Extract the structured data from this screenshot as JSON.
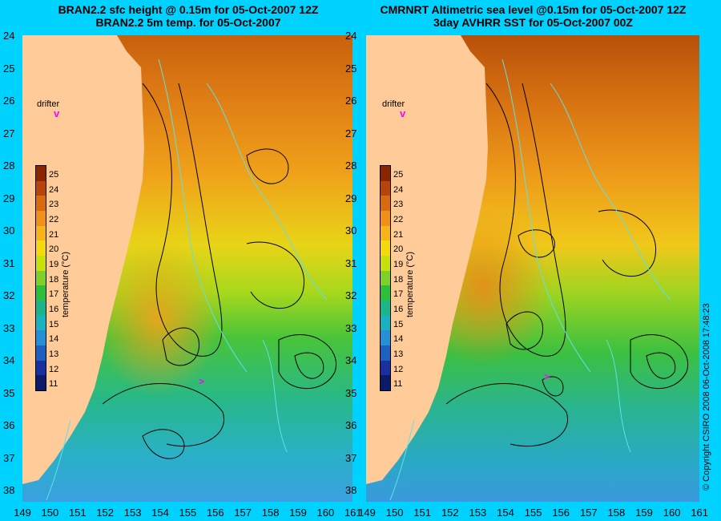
{
  "left_panel": {
    "title_line1": "BRAN2.2 sfc height @ 0.15m for 05-Oct-2007 12Z",
    "title_line2": "BRAN2.2 5m temp. for 05-Oct-2007",
    "drifter_label": "drifter"
  },
  "right_panel": {
    "title_line1": "CMRNRT Altimetric sea level  @0.15m  for 05-Oct-2007 12Z",
    "title_line2": "3day AVHRR SST for 05-Oct-2007 00Z",
    "drifter_label": "drifter"
  },
  "axes": {
    "y_ticks": [
      "24",
      "25",
      "26",
      "27",
      "28",
      "29",
      "30",
      "31",
      "32",
      "33",
      "34",
      "35",
      "36",
      "37",
      "38"
    ],
    "x_ticks": [
      "149",
      "150",
      "151",
      "152",
      "153",
      "154",
      "155",
      "156",
      "157",
      "158",
      "159",
      "160",
      "161"
    ]
  },
  "colorbar": {
    "label": "temperature (°C)",
    "ticks": [
      "25",
      "24",
      "23",
      "22",
      "21",
      "20",
      "19",
      "18",
      "17",
      "16",
      "15",
      "14",
      "13",
      "12",
      "11"
    ],
    "colors": [
      "#8b2500",
      "#b8440c",
      "#d96a10",
      "#f09018",
      "#f7b41a",
      "#f5d80e",
      "#c8e00a",
      "#7fd12a",
      "#2cc03a",
      "#1ab58a",
      "#18b2c0",
      "#2590d8",
      "#1f5fc0",
      "#1a30a0",
      "#0d1a6a"
    ]
  },
  "copyright": "© Copyright CSIRO 2008   06-Oct-2008 17:48:23",
  "colors": {
    "background": "#00d2ff",
    "land": "#ffcc99",
    "drifter": "#ff00ff",
    "contour_black": "#000000",
    "contour_cyan": "#5fe0e8"
  }
}
